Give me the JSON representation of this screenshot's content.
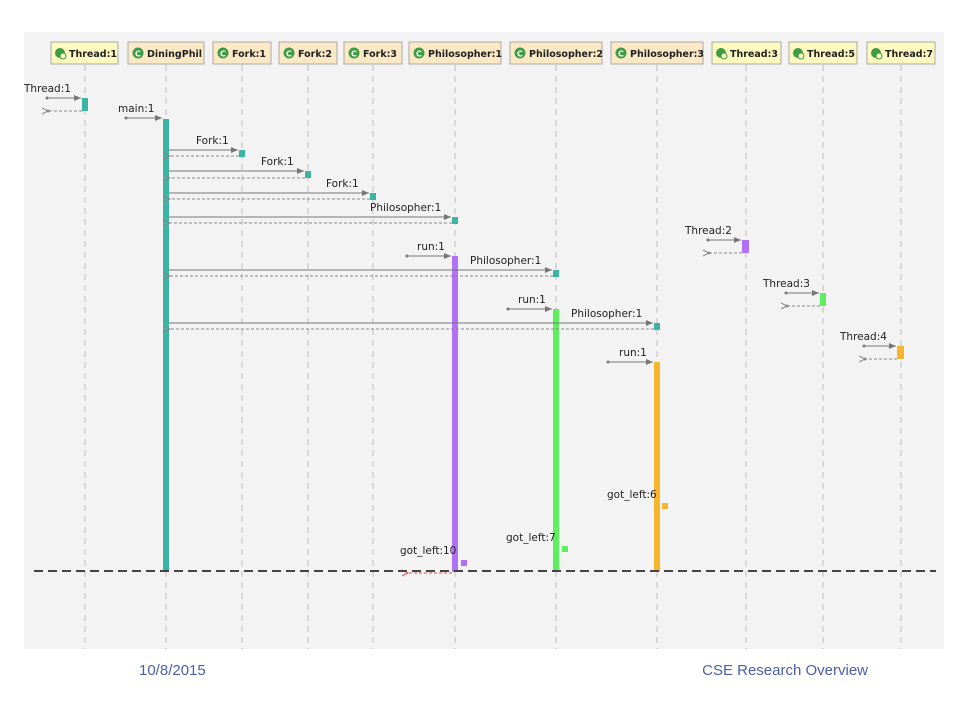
{
  "colors": {
    "teal": "#3bb4a3",
    "purple": "#b071f5",
    "green": "#5cf05c",
    "orange": "#f7b52c",
    "thread_header_fill": "#fdf9bf",
    "class_header_fill": "#fbe9c6",
    "class_icon": "#3f9c45",
    "lifeline": "#bdbdbd",
    "message": "#777777",
    "return_highlight": "#d9534f",
    "footer_text": "#4a5fa8"
  },
  "lifelines": [
    {
      "id": "thread1",
      "label": "Thread:1",
      "kind": "thread",
      "icon": "thread-icon"
    },
    {
      "id": "diningphil",
      "label": "DiningPhil",
      "kind": "class",
      "icon": "class-icon"
    },
    {
      "id": "fork1",
      "label": "Fork:1",
      "kind": "class",
      "icon": "class-icon"
    },
    {
      "id": "fork2",
      "label": "Fork:2",
      "kind": "class",
      "icon": "class-icon"
    },
    {
      "id": "fork3",
      "label": "Fork:3",
      "kind": "class",
      "icon": "class-icon"
    },
    {
      "id": "phil1",
      "label": "Philosopher:1",
      "kind": "class",
      "icon": "class-icon"
    },
    {
      "id": "phil2",
      "label": "Philosopher:2",
      "kind": "class",
      "icon": "class-icon"
    },
    {
      "id": "phil3",
      "label": "Philosopher:3",
      "kind": "class",
      "icon": "class-icon"
    },
    {
      "id": "thread3",
      "label": "Thread:3",
      "kind": "thread",
      "icon": "thread-icon"
    },
    {
      "id": "thread5",
      "label": "Thread:5",
      "kind": "thread",
      "icon": "thread-icon"
    },
    {
      "id": "thread7",
      "label": "Thread:7",
      "kind": "thread",
      "icon": "thread-icon"
    }
  ],
  "messages": [
    {
      "label": "Thread:1",
      "target": "thread1"
    },
    {
      "label": "main:1",
      "target": "diningphil"
    },
    {
      "label": "Fork:1",
      "from": "diningphil",
      "target": "fork1"
    },
    {
      "label": "Fork:1",
      "from": "diningphil",
      "target": "fork2"
    },
    {
      "label": "Fork:1",
      "from": "diningphil",
      "target": "fork3"
    },
    {
      "label": "Philosopher:1",
      "from": "diningphil",
      "target": "phil1"
    },
    {
      "label": "Thread:2",
      "target": "thread3"
    },
    {
      "label": "run:1",
      "target": "phil1"
    },
    {
      "label": "Philosopher:1",
      "from": "diningphil",
      "target": "phil2"
    },
    {
      "label": "Thread:3",
      "target": "thread5"
    },
    {
      "label": "run:1",
      "target": "phil2"
    },
    {
      "label": "Philosopher:1",
      "from": "diningphil",
      "target": "phil3"
    },
    {
      "label": "Thread:4",
      "target": "thread7"
    },
    {
      "label": "run:1",
      "target": "phil3"
    },
    {
      "label": "got_left:6",
      "target": "phil3",
      "kind": "self-call"
    },
    {
      "label": "got_left:7",
      "target": "phil2",
      "kind": "self-call"
    },
    {
      "label": "got_left:10",
      "target": "phil1",
      "kind": "self-call"
    }
  ],
  "footer": {
    "date": "10/8/2015",
    "title": "CSE Research Overview"
  }
}
